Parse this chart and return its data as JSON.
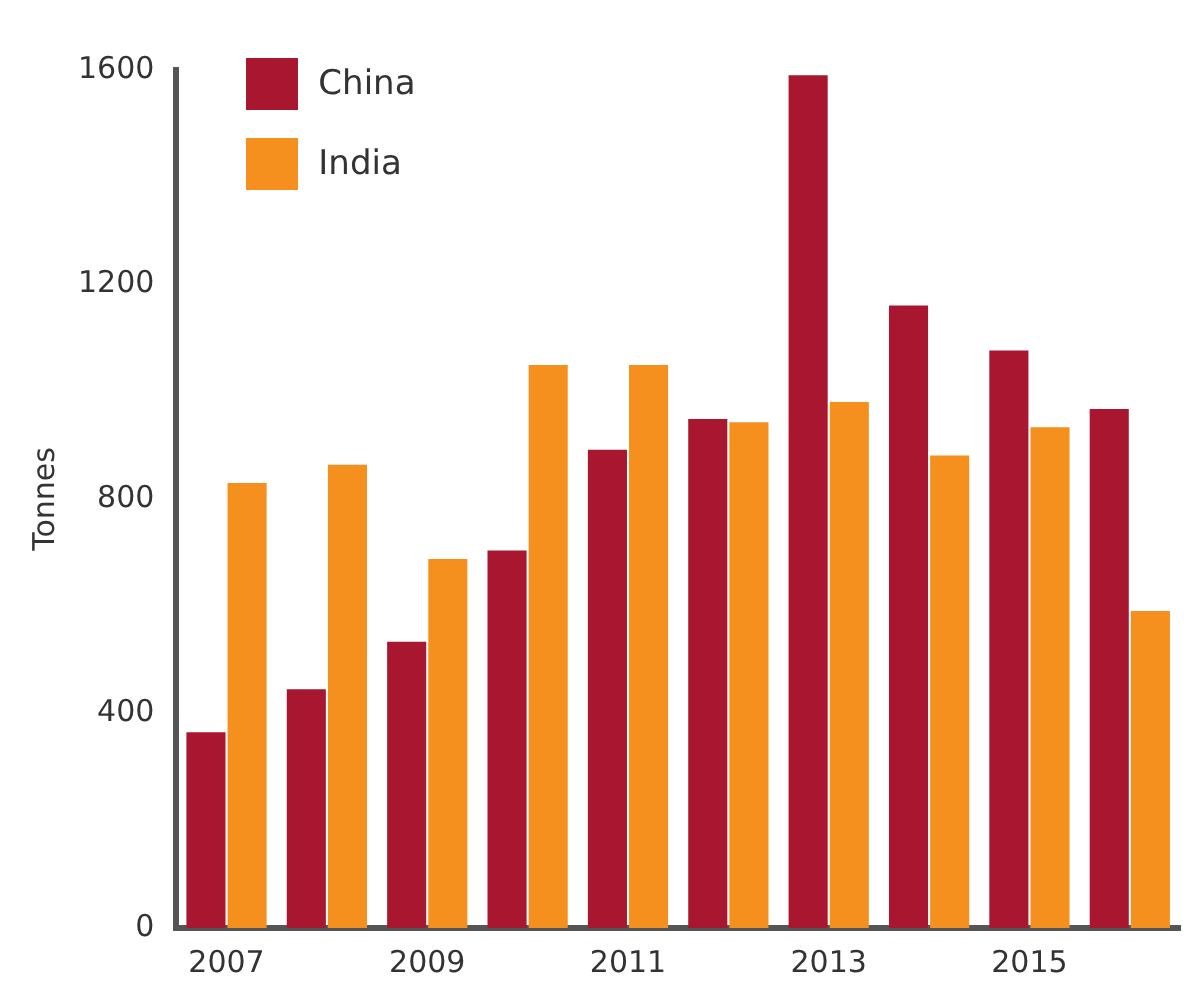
{
  "chart_data": {
    "type": "bar",
    "ylabel": "Tonnes",
    "categories": [
      "2007",
      null,
      "2009",
      null,
      "2011",
      null,
      "2013",
      null,
      "2015",
      null
    ],
    "series": [
      {
        "name": "China",
        "color": "#a8162f",
        "values": [
          365,
          445,
          534,
          704,
          892,
          949,
          1590,
          1161,
          1077,
          968
        ]
      },
      {
        "name": "India",
        "color": "#f5901e",
        "values": [
          830,
          864,
          688,
          1050,
          1050,
          943,
          981,
          881,
          934,
          591
        ]
      }
    ],
    "ylim": [
      0,
      1600
    ],
    "yticks": [
      0,
      400,
      800,
      1200,
      1600
    ],
    "grid": false,
    "legend": "top left"
  }
}
